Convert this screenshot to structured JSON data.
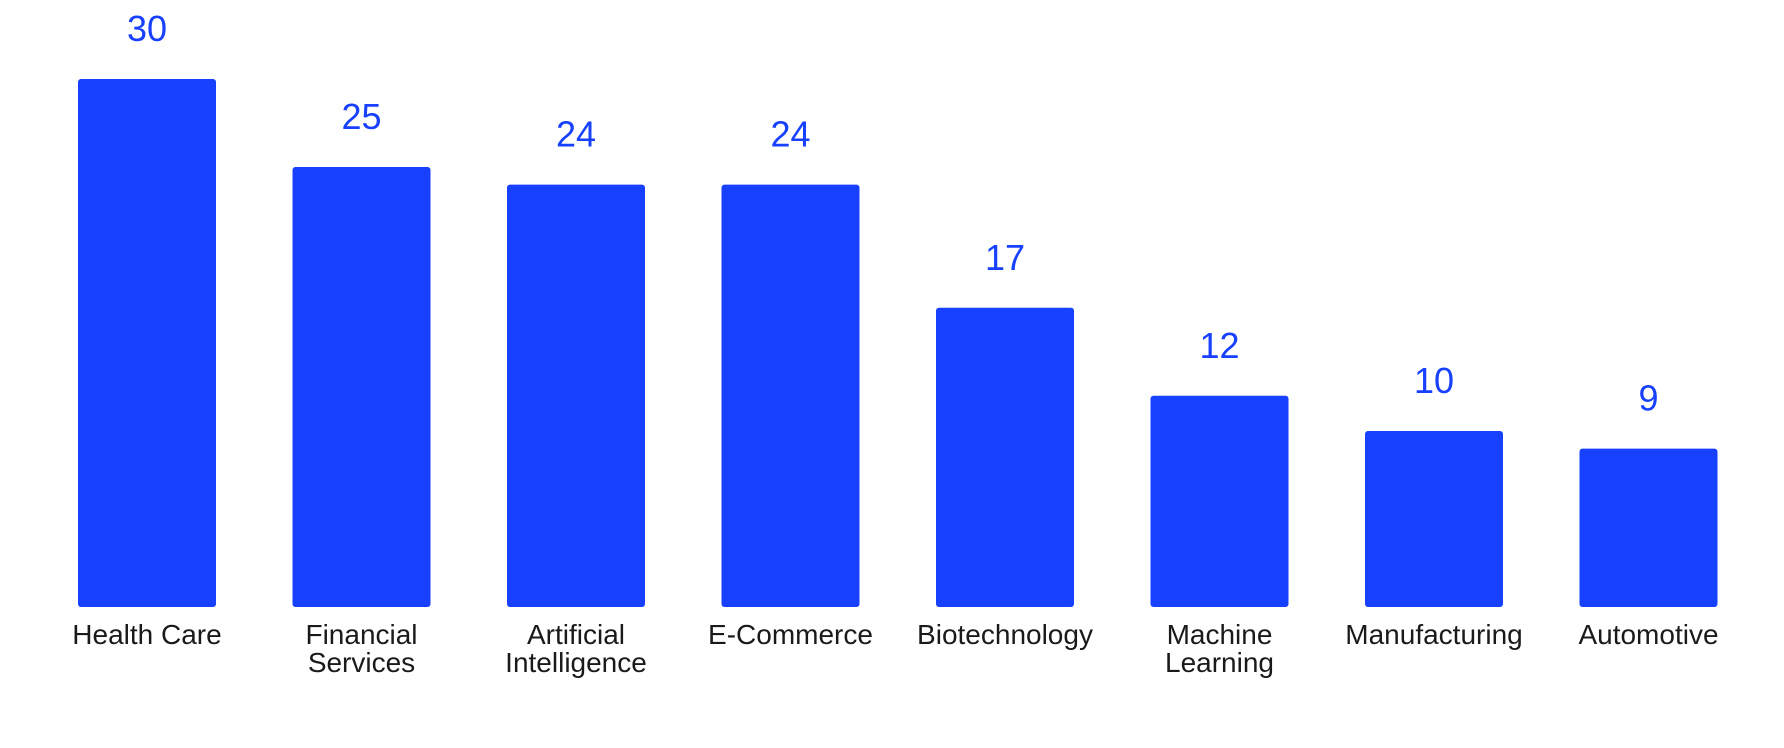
{
  "chart_data": {
    "type": "bar",
    "title": "",
    "xlabel": "",
    "ylabel": "",
    "ylim": [
      0,
      30
    ],
    "grid": false,
    "categories": [
      "Health Care",
      "Financial Services",
      "Artificial Intelligence",
      "E-Commerce",
      "Biotechnology",
      "Machine Learning",
      "Manufacturing",
      "Automotive"
    ],
    "category_label_lines": [
      [
        "Health Care"
      ],
      [
        "Financial",
        "Services"
      ],
      [
        "Artificial",
        "Intelligence"
      ],
      [
        "E-Commerce"
      ],
      [
        "Biotechnology"
      ],
      [
        "Machine",
        "Learning"
      ],
      [
        "Manufacturing"
      ],
      [
        "Automotive"
      ]
    ],
    "values": [
      30,
      25,
      24,
      24,
      17,
      12,
      10,
      9
    ],
    "data_labels": [
      "30",
      "25",
      "24",
      "24",
      "17",
      "12",
      "10",
      "9"
    ],
    "colors": {
      "bar": "#1740ff",
      "value_label": "#1740ff",
      "category_label": "#1a1a1a",
      "background": "#ffffff"
    }
  }
}
